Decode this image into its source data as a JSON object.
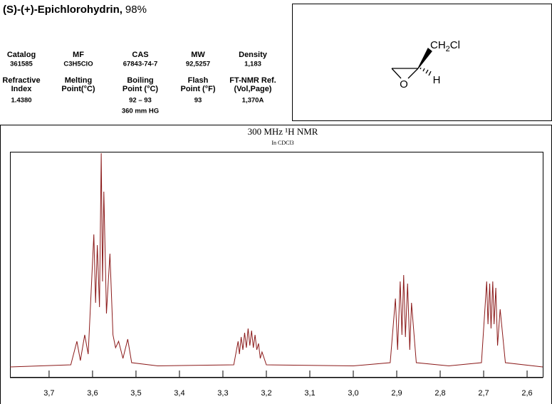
{
  "header": {
    "name": "(S)-(+)-Epichlorohydrin,",
    "purity": "98%",
    "properties": [
      {
        "label": [
          "Catalog"
        ],
        "value": [
          "361585"
        ]
      },
      {
        "label": [
          "MF"
        ],
        "value": [
          "C3H5ClO"
        ]
      },
      {
        "label": [
          "CAS"
        ],
        "value": [
          "67843-74-7"
        ]
      },
      {
        "label": [
          "MW"
        ],
        "value": [
          "92,5257"
        ]
      },
      {
        "label": [
          "Density"
        ],
        "value": [
          "1,183"
        ]
      },
      {
        "label": [
          "Refractive",
          "Index"
        ],
        "value": [
          "1.4380"
        ]
      },
      {
        "label": [
          "Melting",
          "Point(°C)"
        ]
      },
      {
        "label": [
          "Boiling",
          "Point (°C)"
        ],
        "value": [
          "92 – 93",
          "360 mm HG"
        ]
      },
      {
        "label": [
          "Flash",
          "Point (°F)"
        ],
        "value": [
          "93"
        ]
      },
      {
        "label": [
          "FT-NMR Ref.",
          "(Vol,Page)"
        ],
        "value": [
          "1,370A"
        ]
      }
    ]
  },
  "molecule": {
    "group": [
      "CH",
      "2",
      "Cl"
    ],
    "hydrogen": "H",
    "oxygen": "O"
  },
  "chart_data": {
    "type": "line",
    "title": "300 MHz ¹H NMR",
    "subtitle": "In CDCl3",
    "color": "#8b1a1a",
    "xlim": [
      3.79,
      2.564
    ],
    "ylim": [
      -5,
      100
    ],
    "xticks": [
      {
        "value": 3.7,
        "label": "3,7"
      },
      {
        "value": 3.6,
        "label": "3,6"
      },
      {
        "value": 3.5,
        "label": "3,5"
      },
      {
        "value": 3.4,
        "label": "3,4"
      },
      {
        "value": 3.3,
        "label": "3,3"
      },
      {
        "value": 3.2,
        "label": "3,2"
      },
      {
        "value": 3.1,
        "label": "3,1"
      },
      {
        "value": 3.0,
        "label": "3,0"
      },
      {
        "value": 2.9,
        "label": "2,9"
      },
      {
        "value": 2.8,
        "label": "2,8"
      },
      {
        "value": 2.7,
        "label": "2,7"
      },
      {
        "value": 2.6,
        "label": "2,6"
      }
    ],
    "x": [
      3.79,
      3.65,
      3.636,
      3.628,
      3.618,
      3.61,
      3.597,
      3.593,
      3.589,
      3.584,
      3.58,
      3.577,
      3.574,
      3.568,
      3.56,
      3.553,
      3.547,
      3.54,
      3.53,
      3.519,
      3.51,
      3.45,
      3.275,
      3.265,
      3.262,
      3.258,
      3.254,
      3.25,
      3.246,
      3.242,
      3.238,
      3.234,
      3.23,
      3.226,
      3.222,
      3.218,
      3.214,
      3.21,
      3.2,
      3.0,
      2.915,
      2.903,
      2.898,
      2.892,
      2.888,
      2.884,
      2.88,
      2.875,
      2.87,
      2.866,
      2.855,
      2.78,
      2.705,
      2.693,
      2.69,
      2.686,
      2.683,
      2.679,
      2.676,
      2.672,
      2.668,
      2.662,
      2.65,
      2.564
    ],
    "values": [
      0,
      1,
      12,
      3,
      15,
      6,
      62,
      30,
      57,
      28,
      100,
      40,
      82,
      25,
      53,
      15,
      9,
      12,
      4,
      13,
      2,
      0.5,
      1,
      12,
      6,
      14,
      8,
      16,
      9,
      18,
      10,
      17,
      9,
      15,
      8,
      11,
      4,
      7,
      1,
      0.5,
      2,
      32,
      8,
      40,
      15,
      43,
      14,
      39,
      8,
      30,
      2,
      0.5,
      2,
      40,
      20,
      39,
      18,
      40,
      20,
      37,
      10,
      27,
      2,
      0
    ]
  }
}
